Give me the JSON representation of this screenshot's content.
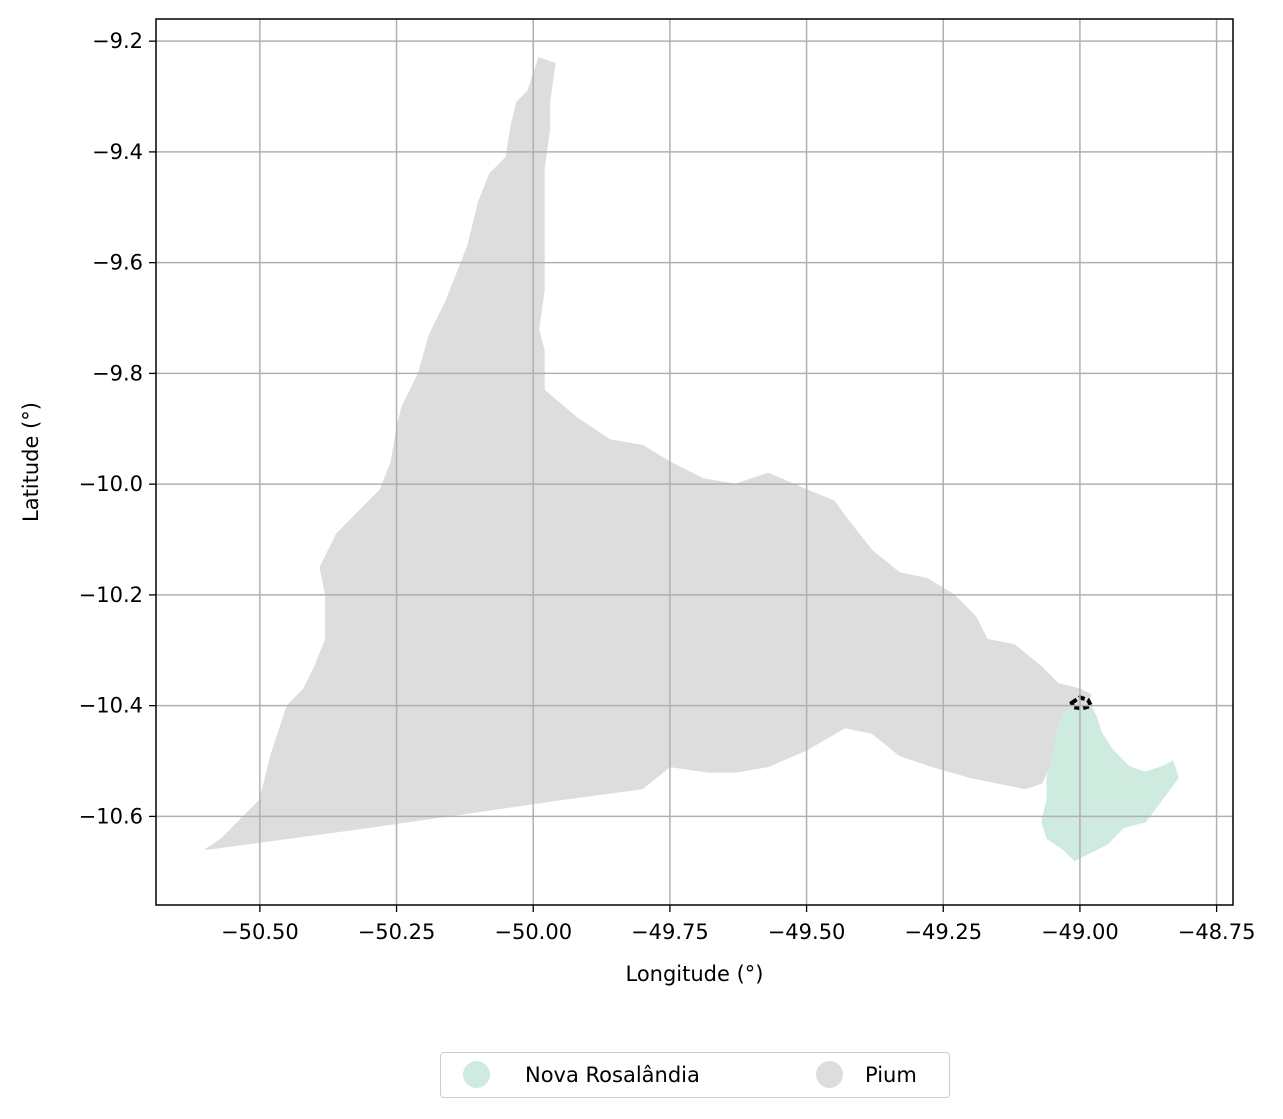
{
  "chart_data": {
    "type": "map",
    "xlabel": "Longitude (°)",
    "ylabel": "Latitude (°)",
    "xlim": [
      -50.69,
      -48.72
    ],
    "ylim": [
      -10.76,
      -9.16
    ],
    "grid": true,
    "x_ticks": [
      -50.5,
      -50.25,
      -50.0,
      -49.75,
      -49.5,
      -49.25,
      -49.0,
      -48.75
    ],
    "x_tick_labels": [
      "−50.50",
      "−50.25",
      "−50.00",
      "−49.75",
      "−49.50",
      "−49.25",
      "−49.00",
      "−48.75"
    ],
    "y_ticks": [
      -9.2,
      -9.4,
      -9.6,
      -9.8,
      -10.0,
      -10.2,
      -10.4,
      -10.6
    ],
    "y_tick_labels": [
      "−9.2",
      "−9.4",
      "−9.6",
      "−9.8",
      "−10.0",
      "−10.2",
      "−10.4",
      "−10.6"
    ],
    "legend_placement": "bottom-center, outside",
    "regions": [
      {
        "name": "Pium",
        "color": "#dddddd",
        "polygon": [
          [
            -50.6,
            -10.66
          ],
          [
            -50.57,
            -10.64
          ],
          [
            -50.55,
            -10.62
          ],
          [
            -50.53,
            -10.6
          ],
          [
            -50.5,
            -10.57
          ],
          [
            -50.48,
            -10.49
          ],
          [
            -50.45,
            -10.4
          ],
          [
            -50.42,
            -10.37
          ],
          [
            -50.4,
            -10.33
          ],
          [
            -50.38,
            -10.28
          ],
          [
            -50.38,
            -10.2
          ],
          [
            -50.39,
            -10.15
          ],
          [
            -50.36,
            -10.09
          ],
          [
            -50.32,
            -10.05
          ],
          [
            -50.28,
            -10.01
          ],
          [
            -50.26,
            -9.96
          ],
          [
            -50.25,
            -9.9
          ],
          [
            -50.24,
            -9.86
          ],
          [
            -50.21,
            -9.8
          ],
          [
            -50.19,
            -9.73
          ],
          [
            -50.16,
            -9.67
          ],
          [
            -50.12,
            -9.57
          ],
          [
            -50.1,
            -9.49
          ],
          [
            -50.08,
            -9.44
          ],
          [
            -50.05,
            -9.41
          ],
          [
            -50.04,
            -9.35
          ],
          [
            -50.03,
            -9.31
          ],
          [
            -50.01,
            -9.29
          ],
          [
            -50.0,
            -9.26
          ],
          [
            -49.99,
            -9.23
          ],
          [
            -49.96,
            -9.24
          ],
          [
            -49.97,
            -9.31
          ],
          [
            -49.97,
            -9.36
          ],
          [
            -49.98,
            -9.43
          ],
          [
            -49.98,
            -9.53
          ],
          [
            -49.98,
            -9.65
          ],
          [
            -49.99,
            -9.72
          ],
          [
            -49.98,
            -9.76
          ],
          [
            -49.98,
            -9.83
          ],
          [
            -49.92,
            -9.88
          ],
          [
            -49.86,
            -9.92
          ],
          [
            -49.8,
            -9.93
          ],
          [
            -49.75,
            -9.96
          ],
          [
            -49.69,
            -9.99
          ],
          [
            -49.63,
            -10.0
          ],
          [
            -49.57,
            -9.98
          ],
          [
            -49.5,
            -10.01
          ],
          [
            -49.45,
            -10.03
          ],
          [
            -49.42,
            -10.07
          ],
          [
            -49.38,
            -10.12
          ],
          [
            -49.33,
            -10.16
          ],
          [
            -49.28,
            -10.17
          ],
          [
            -49.23,
            -10.2
          ],
          [
            -49.19,
            -10.24
          ],
          [
            -49.17,
            -10.28
          ],
          [
            -49.12,
            -10.29
          ],
          [
            -49.07,
            -10.33
          ],
          [
            -49.04,
            -10.36
          ],
          [
            -49.0,
            -10.37
          ],
          [
            -48.98,
            -10.38
          ],
          [
            -49.0,
            -10.42
          ],
          [
            -49.02,
            -10.46
          ],
          [
            -49.05,
            -10.5
          ],
          [
            -49.07,
            -10.54
          ],
          [
            -49.1,
            -10.55
          ],
          [
            -49.2,
            -10.53
          ],
          [
            -49.27,
            -10.51
          ],
          [
            -49.33,
            -10.49
          ],
          [
            -49.38,
            -10.45
          ],
          [
            -49.43,
            -10.44
          ],
          [
            -49.5,
            -10.48
          ],
          [
            -49.57,
            -10.51
          ],
          [
            -49.63,
            -10.52
          ],
          [
            -49.68,
            -10.52
          ],
          [
            -49.75,
            -10.51
          ],
          [
            -49.8,
            -10.55
          ],
          [
            -49.95,
            -10.57
          ],
          [
            -50.3,
            -10.62
          ],
          [
            -50.6,
            -10.66
          ]
        ]
      },
      {
        "name": "Nova Rosalândia",
        "color": "#cfeadf",
        "polygon": [
          [
            -49.04,
            -10.44
          ],
          [
            -49.03,
            -10.41
          ],
          [
            -49.0,
            -10.4
          ],
          [
            -48.98,
            -10.4
          ],
          [
            -48.97,
            -10.42
          ],
          [
            -48.96,
            -10.45
          ],
          [
            -48.94,
            -10.48
          ],
          [
            -48.91,
            -10.51
          ],
          [
            -48.88,
            -10.52
          ],
          [
            -48.85,
            -10.51
          ],
          [
            -48.83,
            -10.5
          ],
          [
            -48.82,
            -10.53
          ],
          [
            -48.85,
            -10.57
          ],
          [
            -48.88,
            -10.61
          ],
          [
            -48.92,
            -10.62
          ],
          [
            -48.95,
            -10.65
          ],
          [
            -48.99,
            -10.67
          ],
          [
            -49.01,
            -10.68
          ],
          [
            -49.03,
            -10.66
          ],
          [
            -49.06,
            -10.64
          ],
          [
            -49.07,
            -10.61
          ],
          [
            -49.06,
            -10.57
          ],
          [
            -49.06,
            -10.53
          ],
          [
            -49.05,
            -10.49
          ],
          [
            -49.04,
            -10.44
          ]
        ]
      }
    ],
    "highlight": {
      "style": "dashed black outline",
      "polygon": [
        [
          -49.015,
          -10.395
        ],
        [
          -49.0,
          -10.385
        ],
        [
          -48.985,
          -10.39
        ],
        [
          -48.98,
          -10.4
        ],
        [
          -48.995,
          -10.405
        ],
        [
          -49.012,
          -10.403
        ],
        [
          -49.015,
          -10.395
        ]
      ]
    }
  },
  "legend": {
    "items": [
      {
        "label": "Nova Rosalândia",
        "color": "#cfeadf"
      },
      {
        "label": "Pium",
        "color": "#dddddd"
      }
    ]
  }
}
